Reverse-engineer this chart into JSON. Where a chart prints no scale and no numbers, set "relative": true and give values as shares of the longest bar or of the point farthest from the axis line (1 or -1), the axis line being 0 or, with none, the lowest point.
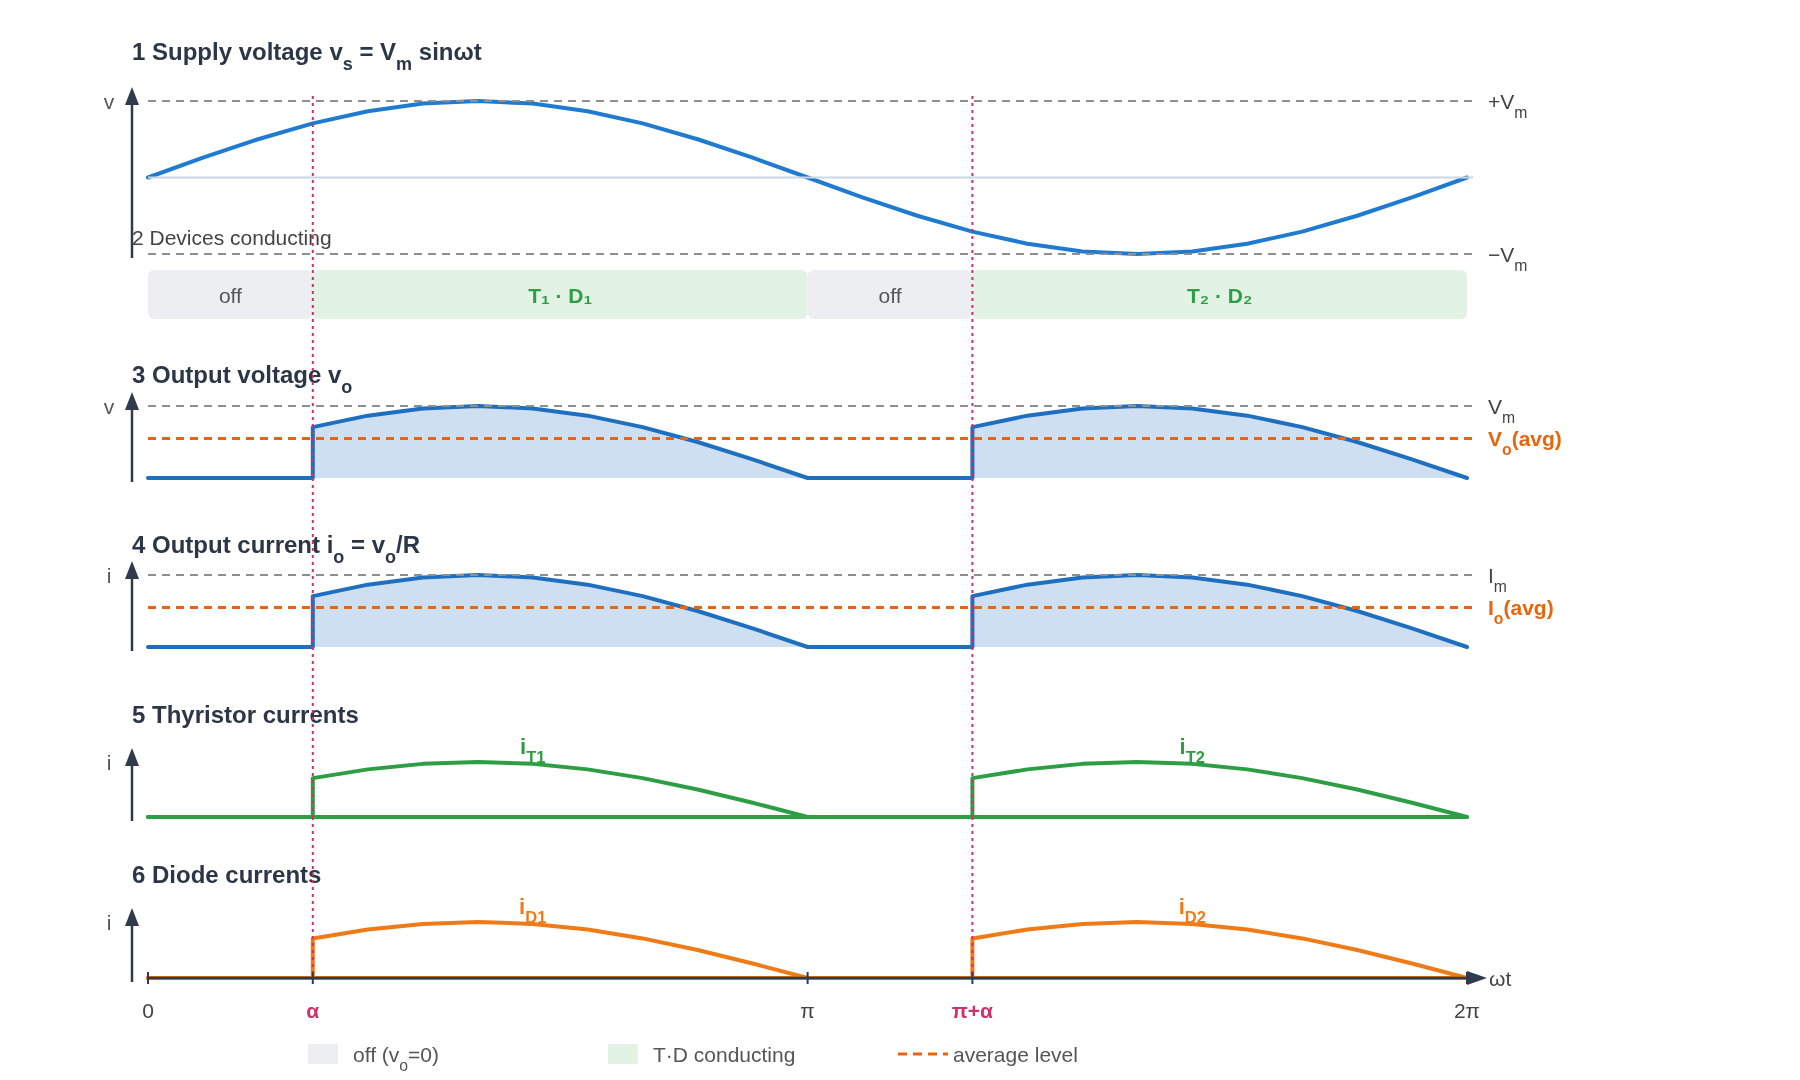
{
  "chart_data": [
    {
      "type": "line",
      "title": "1  Supply voltage  v$_{s}$ = V$_{m}$ sinωt",
      "ylabel": "v",
      "relative": true,
      "xlim": [
        0,
        6.283
      ],
      "tick_labels": false,
      "x": [
        0,
        0.262,
        0.524,
        0.785,
        1.047,
        1.309,
        1.571,
        1.833,
        2.094,
        2.356,
        2.618,
        2.88,
        3.142,
        3.403,
        3.665,
        3.927,
        4.189,
        4.451,
        4.712,
        4.974,
        5.236,
        5.498,
        5.76,
        6.021,
        6.283
      ],
      "series": [
        {
          "color": "#1f7bd0",
          "values": [
            0,
            0.259,
            0.5,
            0.707,
            0.866,
            0.966,
            1,
            0.966,
            0.866,
            0.707,
            0.5,
            0.259,
            0,
            -0.259,
            -0.5,
            -0.707,
            -0.866,
            -0.966,
            -1,
            -0.966,
            -0.866,
            -0.707,
            -0.5,
            -0.259,
            0
          ]
        }
      ],
      "ref_lines": [
        {
          "axis": "y",
          "value": 1,
          "label": "+V$_{m}$",
          "color": "#8f8f8f",
          "line_style": "dashed"
        },
        {
          "axis": "y",
          "value": -1,
          "label": "−V$_{m}$",
          "color": "#8f8f8f",
          "line_style": "dashed"
        },
        {
          "axis": "y",
          "value": 0,
          "color": "#c9d6e3",
          "line_style": "solid"
        },
        {
          "axis": "x",
          "value": 0.785,
          "color": "#d0306a",
          "line_style": "dotted"
        },
        {
          "axis": "x",
          "value": 3.927,
          "color": "#d0306a",
          "line_style": "dotted"
        }
      ]
    },
    {
      "type": "bar",
      "orientation": "horizontal",
      "stacked": true,
      "title": "2  Devices conducting",
      "xlim": [
        0,
        6.283
      ],
      "tick_labels": false,
      "legend": "bottom",
      "annotations": [
        "average level"
      ],
      "categories": [
        null
      ],
      "series": [
        {
          "name": "off (v$_{o}$=0)",
          "color": "#eceef1",
          "values": [
            0.785
          ],
          "value_labels": [
            "off"
          ]
        },
        {
          "name": "T·D conducting",
          "color": "#e2f2e4",
          "values": [
            2.357
          ],
          "value_labels": [
            "T₁ · D₁"
          ]
        },
        {
          "color": "#eceef1",
          "values": [
            0.785
          ],
          "value_labels": [
            "off"
          ]
        },
        {
          "color": "#e2f2e4",
          "values": [
            2.356
          ],
          "value_labels": [
            "T₂ · D₂"
          ]
        }
      ],
      "ref_lines": [
        {
          "axis": "x",
          "value": 0.785,
          "color": "#d0306a",
          "line_style": "dotted"
        },
        {
          "axis": "x",
          "value": 3.927,
          "color": "#d0306a",
          "line_style": "dotted"
        }
      ]
    },
    {
      "type": "area",
      "title": "3  Output voltage  v$_{o}$",
      "ylabel": "v",
      "relative": true,
      "xlim": [
        0,
        6.283
      ],
      "tick_labels": false,
      "x": [
        0,
        0.785,
        0.785,
        1.047,
        1.309,
        1.571,
        1.833,
        2.094,
        2.356,
        2.618,
        2.88,
        3.142,
        3.927,
        3.927,
        4.189,
        4.451,
        4.712,
        4.974,
        5.236,
        5.498,
        5.76,
        6.021,
        6.283
      ],
      "series": [
        {
          "color": "#1f6fc0",
          "values": [
            0,
            0,
            0.707,
            0.866,
            0.966,
            1,
            0.966,
            0.866,
            0.707,
            0.5,
            0.259,
            0,
            0,
            0.707,
            0.866,
            0.966,
            1,
            0.966,
            0.866,
            0.707,
            0.5,
            0.259,
            0
          ]
        }
      ],
      "ref_lines": [
        {
          "axis": "y",
          "value": 1,
          "label": "V$_{m}$",
          "color": "#8f8f8f",
          "line_style": "dashed"
        },
        {
          "axis": "y",
          "value": 0.55,
          "label": "V$_{o}$(avg)",
          "color": "#e8650f",
          "line_style": "dashed"
        },
        {
          "axis": "x",
          "value": 0.785,
          "color": "#d0306a",
          "line_style": "dotted"
        },
        {
          "axis": "x",
          "value": 3.927,
          "color": "#d0306a",
          "line_style": "dotted"
        }
      ]
    },
    {
      "type": "area",
      "title": "4  Output current  i$_{o}$ = v$_{o}$/R",
      "ylabel": "i",
      "relative": true,
      "xlim": [
        0,
        6.283
      ],
      "tick_labels": false,
      "x": [
        0,
        0.785,
        0.785,
        1.047,
        1.309,
        1.571,
        1.833,
        2.094,
        2.356,
        2.618,
        2.88,
        3.142,
        3.927,
        3.927,
        4.189,
        4.451,
        4.712,
        4.974,
        5.236,
        5.498,
        5.76,
        6.021,
        6.283
      ],
      "series": [
        {
          "color": "#1f6fc0",
          "values": [
            0,
            0,
            0.707,
            0.866,
            0.966,
            1,
            0.966,
            0.866,
            0.707,
            0.5,
            0.259,
            0,
            0,
            0.707,
            0.866,
            0.966,
            1,
            0.966,
            0.866,
            0.707,
            0.5,
            0.259,
            0
          ]
        }
      ],
      "ref_lines": [
        {
          "axis": "y",
          "value": 1,
          "label": "I$_{m}$",
          "color": "#8f8f8f",
          "line_style": "dashed"
        },
        {
          "axis": "y",
          "value": 0.55,
          "label": "I$_{o}$(avg)",
          "color": "#e8650f",
          "line_style": "dashed"
        },
        {
          "axis": "x",
          "value": 0.785,
          "color": "#d0306a",
          "line_style": "dotted"
        },
        {
          "axis": "x",
          "value": 3.927,
          "color": "#d0306a",
          "line_style": "dotted"
        }
      ]
    },
    {
      "type": "line",
      "title": "5  Thyristor currents",
      "ylabel": "i",
      "relative": true,
      "xlim": [
        0,
        6.283
      ],
      "tick_labels": false,
      "series": [
        {
          "name": "i$_{T1}$",
          "color": "#2e9e44",
          "x": [
            0,
            0.785,
            0.785,
            1.047,
            1.309,
            1.571,
            1.833,
            2.094,
            2.356,
            2.618,
            2.88,
            3.142,
            6.283
          ],
          "values": [
            0,
            0,
            0.707,
            0.866,
            0.966,
            1,
            0.966,
            0.866,
            0.707,
            0.5,
            0.259,
            0,
            0
          ]
        },
        {
          "name": "i$_{T2}$",
          "color": "#2e9e44",
          "x": [
            0,
            3.927,
            3.927,
            4.189,
            4.451,
            4.712,
            4.974,
            5.236,
            5.498,
            5.76,
            6.021,
            6.283
          ],
          "values": [
            0,
            0,
            0.707,
            0.866,
            0.966,
            1,
            0.966,
            0.866,
            0.707,
            0.5,
            0.259,
            0
          ]
        }
      ],
      "ref_lines": [
        {
          "axis": "x",
          "value": 0.785,
          "color": "#d0306a",
          "line_style": "dotted"
        },
        {
          "axis": "x",
          "value": 3.927,
          "color": "#d0306a",
          "line_style": "dotted"
        }
      ]
    },
    {
      "type": "line",
      "title": "6  Diode currents",
      "ylabel": "i",
      "xlabel": "ωt",
      "relative": true,
      "xlim": [
        0,
        6.283
      ],
      "xticks": [
        0,
        {
          "value": 0.785,
          "label": "α"
        },
        {
          "value": 3.142,
          "label": "π"
        },
        {
          "value": 3.927,
          "label": "π+α"
        },
        {
          "value": 6.283,
          "label": "2π"
        }
      ],
      "tick_labels": "x",
      "series": [
        {
          "name": "i$_{D1}$",
          "color": "#f07a16",
          "x": [
            0,
            0.785,
            0.785,
            1.047,
            1.309,
            1.571,
            1.833,
            2.094,
            2.356,
            2.618,
            2.88,
            3.142,
            6.283
          ],
          "values": [
            0,
            0,
            0.707,
            0.866,
            0.966,
            1,
            0.966,
            0.866,
            0.707,
            0.5,
            0.259,
            0,
            0
          ]
        },
        {
          "name": "i$_{D2}$",
          "color": "#f07a16",
          "x": [
            0,
            3.927,
            3.927,
            4.189,
            4.451,
            4.712,
            4.974,
            5.236,
            5.498,
            5.76,
            6.021,
            6.283
          ],
          "values": [
            0,
            0,
            0.707,
            0.866,
            0.966,
            1,
            0.966,
            0.866,
            0.707,
            0.5,
            0.259,
            0
          ]
        }
      ],
      "ref_lines": [
        {
          "axis": "x",
          "value": 0.785,
          "color": "#d0306a",
          "line_style": "dotted"
        },
        {
          "axis": "x",
          "value": 3.927,
          "color": "#d0306a",
          "line_style": "dotted"
        }
      ]
    }
  ]
}
